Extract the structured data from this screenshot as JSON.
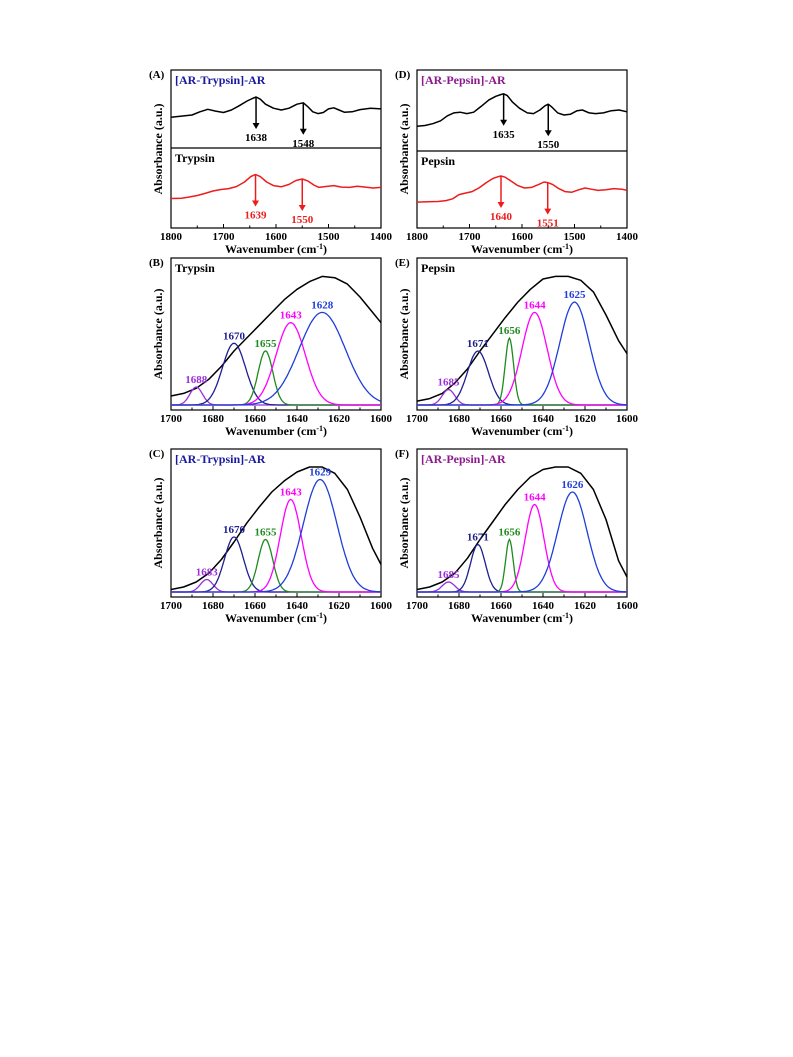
{
  "colors": {
    "black": "#000000",
    "red": "#ee1c1c",
    "purple_band": "#9b30d9",
    "navy_band": "#1f1f8f",
    "green_band": "#1f8a1f",
    "magenta_band": "#ff00ff",
    "blue_band": "#1f3fd8",
    "purple_title": "#8b1a8b",
    "navy_title": "#1a1a9e"
  },
  "common": {
    "xlabel": "Wavenumber (cm",
    "xlabel_sup": "-1",
    "xlabel_close": ")",
    "ylabel": "Absorbance (a.u.)"
  },
  "chart_data": [
    {
      "id": "A",
      "panel_label": "(A)",
      "type": "line",
      "xlim": [
        1800,
        1400
      ],
      "xticks": [
        "1800",
        "1700",
        "1600",
        "1500",
        "1400"
      ],
      "xlabel": "Wavenumber (cm-1)",
      "ylabel": "Absorbance (a.u.)",
      "series": [
        {
          "name": "[AR-Trypsin]-AR",
          "color": "#000000",
          "points": [
            [
              1800,
              0.3
            ],
            [
              1780,
              0.33
            ],
            [
              1760,
              0.36
            ],
            [
              1745,
              0.45
            ],
            [
              1730,
              0.52
            ],
            [
              1715,
              0.47
            ],
            [
              1700,
              0.43
            ],
            [
              1685,
              0.5
            ],
            [
              1670,
              0.62
            ],
            [
              1655,
              0.75
            ],
            [
              1645,
              0.82
            ],
            [
              1638,
              0.86
            ],
            [
              1630,
              0.8
            ],
            [
              1620,
              0.66
            ],
            [
              1605,
              0.55
            ],
            [
              1590,
              0.5
            ],
            [
              1575,
              0.55
            ],
            [
              1560,
              0.66
            ],
            [
              1548,
              0.7
            ],
            [
              1540,
              0.6
            ],
            [
              1530,
              0.45
            ],
            [
              1520,
              0.4
            ],
            [
              1510,
              0.43
            ],
            [
              1500,
              0.53
            ],
            [
              1490,
              0.56
            ],
            [
              1480,
              0.5
            ],
            [
              1470,
              0.44
            ],
            [
              1455,
              0.45
            ],
            [
              1440,
              0.51
            ],
            [
              1420,
              0.55
            ],
            [
              1400,
              0.53
            ]
          ],
          "peaks": [
            {
              "label": "1638",
              "x": 1638
            },
            {
              "label": "1548",
              "x": 1548
            }
          ]
        },
        {
          "name": "Trypsin",
          "color": "#ee1c1c",
          "points": [
            [
              1800,
              0.05
            ],
            [
              1780,
              0.06
            ],
            [
              1765,
              0.1
            ],
            [
              1750,
              0.15
            ],
            [
              1735,
              0.22
            ],
            [
              1720,
              0.3
            ],
            [
              1705,
              0.35
            ],
            [
              1690,
              0.38
            ],
            [
              1675,
              0.45
            ],
            [
              1660,
              0.6
            ],
            [
              1648,
              0.78
            ],
            [
              1639,
              0.85
            ],
            [
              1630,
              0.78
            ],
            [
              1618,
              0.6
            ],
            [
              1605,
              0.48
            ],
            [
              1590,
              0.44
            ],
            [
              1575,
              0.52
            ],
            [
              1562,
              0.65
            ],
            [
              1550,
              0.7
            ],
            [
              1540,
              0.64
            ],
            [
              1528,
              0.5
            ],
            [
              1518,
              0.42
            ],
            [
              1505,
              0.45
            ],
            [
              1490,
              0.48
            ],
            [
              1475,
              0.43
            ],
            [
              1460,
              0.42
            ],
            [
              1445,
              0.46
            ],
            [
              1430,
              0.43
            ],
            [
              1415,
              0.4
            ],
            [
              1400,
              0.42
            ]
          ],
          "peaks": [
            {
              "label": "1639",
              "x": 1639
            },
            {
              "label": "1550",
              "x": 1550
            }
          ]
        }
      ]
    },
    {
      "id": "D",
      "panel_label": "(D)",
      "type": "line",
      "xlim": [
        1800,
        1400
      ],
      "xticks": [
        "1800",
        "1700",
        "1600",
        "1500",
        "1400"
      ],
      "xlabel": "Wavenumber (cm-1)",
      "ylabel": "Absorbance (a.u.)",
      "series": [
        {
          "name": "[AR-Pepsin]-AR",
          "color": "#000000",
          "points": [
            [
              1800,
              0.05
            ],
            [
              1785,
              0.07
            ],
            [
              1770,
              0.12
            ],
            [
              1755,
              0.2
            ],
            [
              1742,
              0.34
            ],
            [
              1730,
              0.42
            ],
            [
              1718,
              0.44
            ],
            [
              1705,
              0.4
            ],
            [
              1692,
              0.44
            ],
            [
              1678,
              0.6
            ],
            [
              1663,
              0.78
            ],
            [
              1650,
              0.88
            ],
            [
              1640,
              0.93
            ],
            [
              1635,
              0.95
            ],
            [
              1628,
              0.9
            ],
            [
              1618,
              0.72
            ],
            [
              1605,
              0.55
            ],
            [
              1590,
              0.42
            ],
            [
              1578,
              0.4
            ],
            [
              1566,
              0.5
            ],
            [
              1556,
              0.62
            ],
            [
              1550,
              0.66
            ],
            [
              1543,
              0.58
            ],
            [
              1532,
              0.42
            ],
            [
              1520,
              0.36
            ],
            [
              1508,
              0.38
            ],
            [
              1495,
              0.48
            ],
            [
              1485,
              0.5
            ],
            [
              1472,
              0.42
            ],
            [
              1460,
              0.4
            ],
            [
              1445,
              0.42
            ],
            [
              1430,
              0.48
            ],
            [
              1415,
              0.5
            ],
            [
              1400,
              0.45
            ]
          ],
          "peaks": [
            {
              "label": "1635",
              "x": 1635
            },
            {
              "label": "1550",
              "x": 1550
            }
          ]
        },
        {
          "name": "Pepsin",
          "color": "#ee1c1c",
          "points": [
            [
              1800,
              0.03
            ],
            [
              1780,
              0.04
            ],
            [
              1760,
              0.05
            ],
            [
              1745,
              0.08
            ],
            [
              1732,
              0.14
            ],
            [
              1720,
              0.28
            ],
            [
              1708,
              0.33
            ],
            [
              1695,
              0.38
            ],
            [
              1682,
              0.5
            ],
            [
              1668,
              0.68
            ],
            [
              1655,
              0.82
            ],
            [
              1645,
              0.88
            ],
            [
              1640,
              0.9
            ],
            [
              1632,
              0.86
            ],
            [
              1620,
              0.72
            ],
            [
              1608,
              0.58
            ],
            [
              1595,
              0.5
            ],
            [
              1582,
              0.52
            ],
            [
              1568,
              0.62
            ],
            [
              1558,
              0.7
            ],
            [
              1551,
              0.68
            ],
            [
              1542,
              0.62
            ],
            [
              1530,
              0.48
            ],
            [
              1518,
              0.38
            ],
            [
              1505,
              0.36
            ],
            [
              1492,
              0.44
            ],
            [
              1480,
              0.5
            ],
            [
              1468,
              0.46
            ],
            [
              1455,
              0.42
            ],
            [
              1440,
              0.44
            ],
            [
              1425,
              0.48
            ],
            [
              1410,
              0.46
            ],
            [
              1400,
              0.42
            ]
          ],
          "peaks": [
            {
              "label": "1640",
              "x": 1640
            },
            {
              "label": "1551",
              "x": 1551
            }
          ]
        }
      ]
    },
    {
      "id": "B",
      "panel_label": "(B)",
      "title": "Trypsin",
      "type": "line",
      "xlim": [
        1700,
        1600
      ],
      "xticks": [
        "1700",
        "1680",
        "1660",
        "1640",
        "1620",
        "1600"
      ],
      "xlabel": "Wavenumber (cm-1)",
      "ylabel": "Absorbance (a.u.)",
      "envelope_color": "#000000",
      "envelope": [
        [
          1700,
          0.07
        ],
        [
          1694,
          0.09
        ],
        [
          1688,
          0.13
        ],
        [
          1682,
          0.2
        ],
        [
          1676,
          0.3
        ],
        [
          1670,
          0.42
        ],
        [
          1664,
          0.52
        ],
        [
          1658,
          0.62
        ],
        [
          1652,
          0.72
        ],
        [
          1646,
          0.82
        ],
        [
          1640,
          0.9
        ],
        [
          1634,
          0.96
        ],
        [
          1628,
          1.0
        ],
        [
          1622,
          0.99
        ],
        [
          1616,
          0.94
        ],
        [
          1610,
          0.84
        ],
        [
          1604,
          0.72
        ],
        [
          1600,
          0.64
        ]
      ],
      "bands": [
        {
          "label": "1688",
          "center": 1688,
          "amplitude": 0.14,
          "width": 3.0,
          "color": "#9b30d9"
        },
        {
          "label": "1670",
          "center": 1670,
          "amplitude": 0.48,
          "width": 5.5,
          "color": "#1f1f8f"
        },
        {
          "label": "1655",
          "center": 1655,
          "amplitude": 0.42,
          "width": 3.5,
          "color": "#1f8a1f"
        },
        {
          "label": "1643",
          "center": 1643,
          "amplitude": 0.64,
          "width": 7.0,
          "color": "#ff00ff"
        },
        {
          "label": "1628",
          "center": 1628,
          "amplitude": 0.72,
          "width": 11.0,
          "color": "#1f3fd8"
        }
      ]
    },
    {
      "id": "E",
      "panel_label": "(E)",
      "title": "Pepsin",
      "type": "line",
      "xlim": [
        1700,
        1600
      ],
      "xticks": [
        "1700",
        "1680",
        "1660",
        "1640",
        "1620",
        "1600"
      ],
      "xlabel": "Wavenumber (cm-1)",
      "ylabel": "Absorbance (a.u.)",
      "envelope_color": "#000000",
      "envelope": [
        [
          1700,
          0.03
        ],
        [
          1694,
          0.05
        ],
        [
          1688,
          0.09
        ],
        [
          1682,
          0.17
        ],
        [
          1676,
          0.28
        ],
        [
          1670,
          0.42
        ],
        [
          1664,
          0.55
        ],
        [
          1658,
          0.68
        ],
        [
          1652,
          0.8
        ],
        [
          1646,
          0.9
        ],
        [
          1640,
          0.98
        ],
        [
          1634,
          1.0
        ],
        [
          1628,
          1.0
        ],
        [
          1622,
          0.97
        ],
        [
          1616,
          0.88
        ],
        [
          1610,
          0.7
        ],
        [
          1604,
          0.5
        ],
        [
          1600,
          0.4
        ]
      ],
      "bands": [
        {
          "label": "1685",
          "center": 1685,
          "amplitude": 0.12,
          "width": 3.0,
          "color": "#9b30d9"
        },
        {
          "label": "1671",
          "center": 1671,
          "amplitude": 0.42,
          "width": 5.0,
          "color": "#1f1f8f"
        },
        {
          "label": "1656",
          "center": 1656,
          "amplitude": 0.52,
          "width": 2.0,
          "color": "#1f8a1f"
        },
        {
          "label": "1644",
          "center": 1644,
          "amplitude": 0.72,
          "width": 6.0,
          "color": "#ff00ff"
        },
        {
          "label": "1625",
          "center": 1625,
          "amplitude": 0.8,
          "width": 7.0,
          "color": "#1f3fd8"
        }
      ]
    },
    {
      "id": "C",
      "panel_label": "(C)",
      "title": "[AR-Trypsin]-AR",
      "type": "line",
      "xlim": [
        1700,
        1600
      ],
      "xticks": [
        "1700",
        "1680",
        "1660",
        "1640",
        "1620",
        "1600"
      ],
      "xlabel": "Wavenumber (cm-1)",
      "ylabel": "Absorbance (a.u.)",
      "envelope_color": "#000000",
      "envelope": [
        [
          1700,
          0.02
        ],
        [
          1694,
          0.04
        ],
        [
          1688,
          0.08
        ],
        [
          1682,
          0.15
        ],
        [
          1676,
          0.26
        ],
        [
          1670,
          0.4
        ],
        [
          1664,
          0.55
        ],
        [
          1658,
          0.68
        ],
        [
          1652,
          0.8
        ],
        [
          1646,
          0.89
        ],
        [
          1640,
          0.96
        ],
        [
          1634,
          1.0
        ],
        [
          1628,
          1.0
        ],
        [
          1622,
          0.95
        ],
        [
          1616,
          0.82
        ],
        [
          1610,
          0.6
        ],
        [
          1604,
          0.35
        ],
        [
          1600,
          0.22
        ]
      ],
      "bands": [
        {
          "label": "1683",
          "center": 1683,
          "amplitude": 0.1,
          "width": 3.0,
          "color": "#9b30d9"
        },
        {
          "label": "1670",
          "center": 1670,
          "amplitude": 0.44,
          "width": 4.5,
          "color": "#1f1f8f"
        },
        {
          "label": "1655",
          "center": 1655,
          "amplitude": 0.42,
          "width": 3.5,
          "color": "#1f8a1f"
        },
        {
          "label": "1643",
          "center": 1643,
          "amplitude": 0.74,
          "width": 5.0,
          "color": "#ff00ff"
        },
        {
          "label": "1629",
          "center": 1629,
          "amplitude": 0.9,
          "width": 8.0,
          "color": "#1f3fd8"
        }
      ]
    },
    {
      "id": "F",
      "panel_label": "(F)",
      "title": "[AR-Pepsin]-AR",
      "type": "line",
      "xlim": [
        1700,
        1600
      ],
      "xticks": [
        "1700",
        "1680",
        "1660",
        "1640",
        "1620",
        "1600"
      ],
      "xlabel": "Wavenumber (cm-1)",
      "ylabel": "Absorbance (a.u.)",
      "envelope_color": "#000000",
      "envelope": [
        [
          1700,
          0.02
        ],
        [
          1694,
          0.04
        ],
        [
          1688,
          0.08
        ],
        [
          1682,
          0.15
        ],
        [
          1676,
          0.27
        ],
        [
          1670,
          0.42
        ],
        [
          1664,
          0.56
        ],
        [
          1658,
          0.7
        ],
        [
          1652,
          0.82
        ],
        [
          1646,
          0.92
        ],
        [
          1640,
          0.98
        ],
        [
          1634,
          1.0
        ],
        [
          1628,
          1.0
        ],
        [
          1622,
          0.95
        ],
        [
          1616,
          0.82
        ],
        [
          1610,
          0.58
        ],
        [
          1604,
          0.25
        ],
        [
          1600,
          0.12
        ]
      ],
      "bands": [
        {
          "label": "1685",
          "center": 1685,
          "amplitude": 0.08,
          "width": 3.0,
          "color": "#9b30d9"
        },
        {
          "label": "1671",
          "center": 1671,
          "amplitude": 0.38,
          "width": 3.5,
          "color": "#1f1f8f"
        },
        {
          "label": "1656",
          "center": 1656,
          "amplitude": 0.42,
          "width": 1.8,
          "color": "#1f8a1f"
        },
        {
          "label": "1644",
          "center": 1644,
          "amplitude": 0.7,
          "width": 4.5,
          "color": "#ff00ff"
        },
        {
          "label": "1626",
          "center": 1626,
          "amplitude": 0.8,
          "width": 7.0,
          "color": "#1f3fd8"
        }
      ]
    }
  ]
}
